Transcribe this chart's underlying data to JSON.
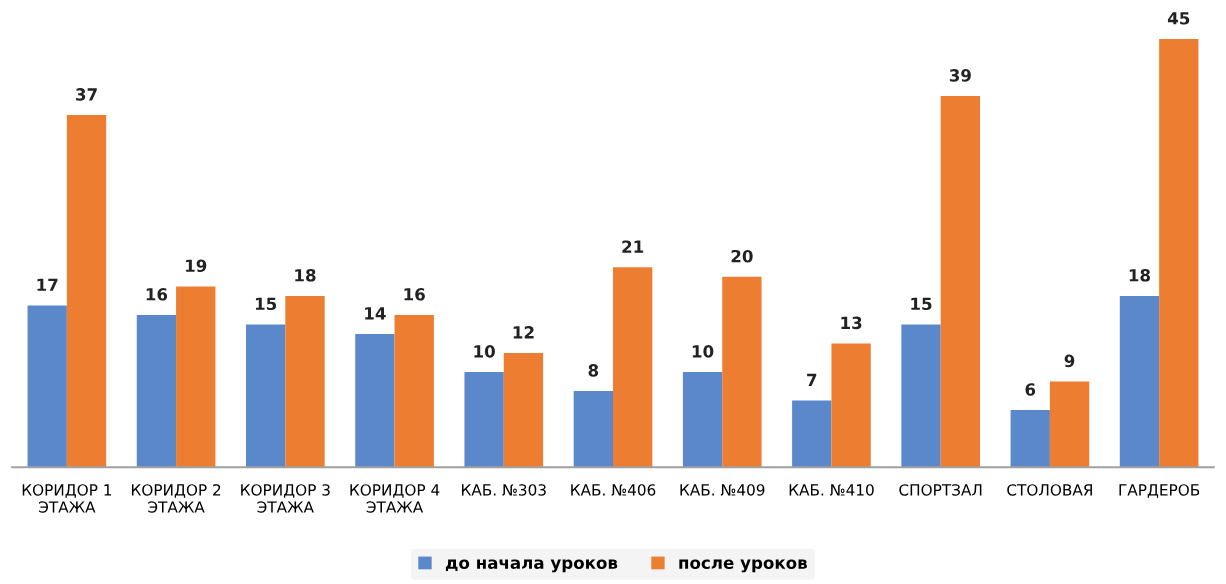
{
  "chart_data": {
    "type": "bar",
    "categories": [
      "КОРИДОР 1\nЭТАЖА",
      "КОРИДОР 2\nЭТАЖА",
      "КОРИДОР 3\nЭТАЖА",
      "КОРИДОР 4\nЭТАЖА",
      "КАБ. №303",
      "КАБ. №406",
      "КАБ. №409",
      "КАБ. №410",
      "СПОРТЗАЛ",
      "СТОЛОВАЯ",
      "ГАРДЕРОБ"
    ],
    "series": [
      {
        "name": "до начала уроков",
        "color": "#5b87cb",
        "values": [
          17,
          16,
          15,
          14,
          10,
          8,
          10,
          7,
          15,
          6,
          18
        ]
      },
      {
        "name": "после уроков",
        "color": "#ed7d31",
        "values": [
          37,
          19,
          18,
          16,
          12,
          21,
          20,
          13,
          39,
          9,
          45
        ]
      }
    ],
    "data_labels": true,
    "grid": false,
    "legend": "bottom",
    "tick_labels": "x"
  }
}
